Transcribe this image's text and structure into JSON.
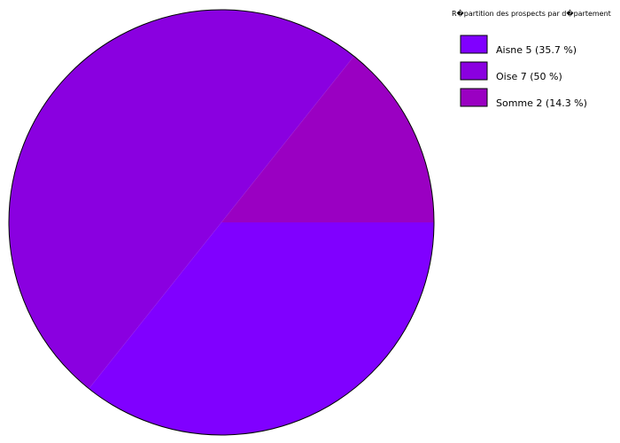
{
  "chart_data": {
    "type": "pie",
    "title": "R�partition des prospects par d�partement",
    "legend_position": "top-right",
    "slices": [
      {
        "label": "Aisne 5 (35.7 %)",
        "name": "Aisne",
        "value": 5,
        "percent": 35.7,
        "color": "#8000ff"
      },
      {
        "label": "Oise 7 (50 %)",
        "name": "Oise",
        "value": 7,
        "percent": 50,
        "color": "#8a00e0"
      },
      {
        "label": "Somme 2 (14.3 %)",
        "name": "Somme",
        "value": 2,
        "percent": 14.3,
        "color": "#9a00c2"
      }
    ]
  }
}
